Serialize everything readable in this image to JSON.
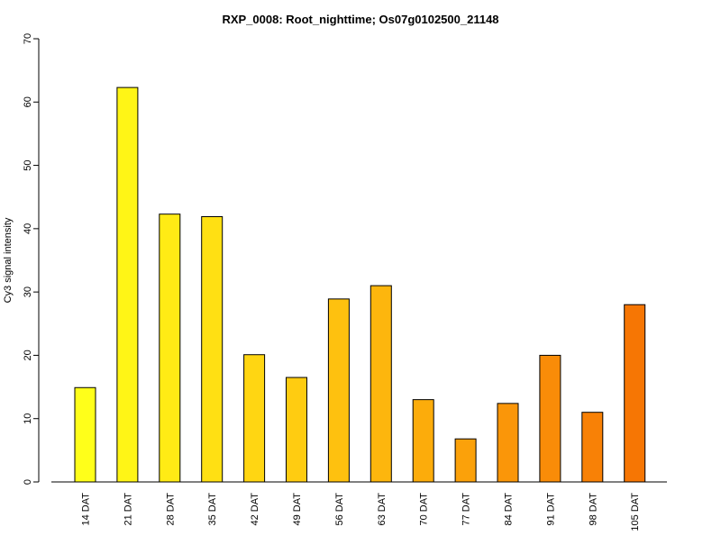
{
  "chart_data": {
    "type": "bar",
    "title": "RXP_0008: Root_nighttime; Os07g0102500_21148",
    "xlabel": "",
    "ylabel": "Cy3 signal intensity",
    "ylim": [
      0,
      70
    ],
    "yticks": [
      0,
      10,
      20,
      30,
      40,
      50,
      60,
      70
    ],
    "grid": false,
    "legend": "none",
    "categories": [
      "14 DAT",
      "21 DAT",
      "28 DAT",
      "35 DAT",
      "42 DAT",
      "49 DAT",
      "56 DAT",
      "63 DAT",
      "70 DAT",
      "77 DAT",
      "84 DAT",
      "91 DAT",
      "98 DAT",
      "105 DAT"
    ],
    "values": [
      14.9,
      62.3,
      42.3,
      41.9,
      20.1,
      16.5,
      28.9,
      31.0,
      13.0,
      6.8,
      12.4,
      20.0,
      11.0,
      28.0
    ],
    "colors": [
      "#FFFF1A",
      "#FFF516",
      "#FFEB15",
      "#FFE013",
      "#FFD612",
      "#FFCC11",
      "#FEC10F",
      "#FDB60D",
      "#FCAC0B",
      "#FBA10A",
      "#FA9609",
      "#F98C08",
      "#F88106",
      "#F67604"
    ]
  }
}
